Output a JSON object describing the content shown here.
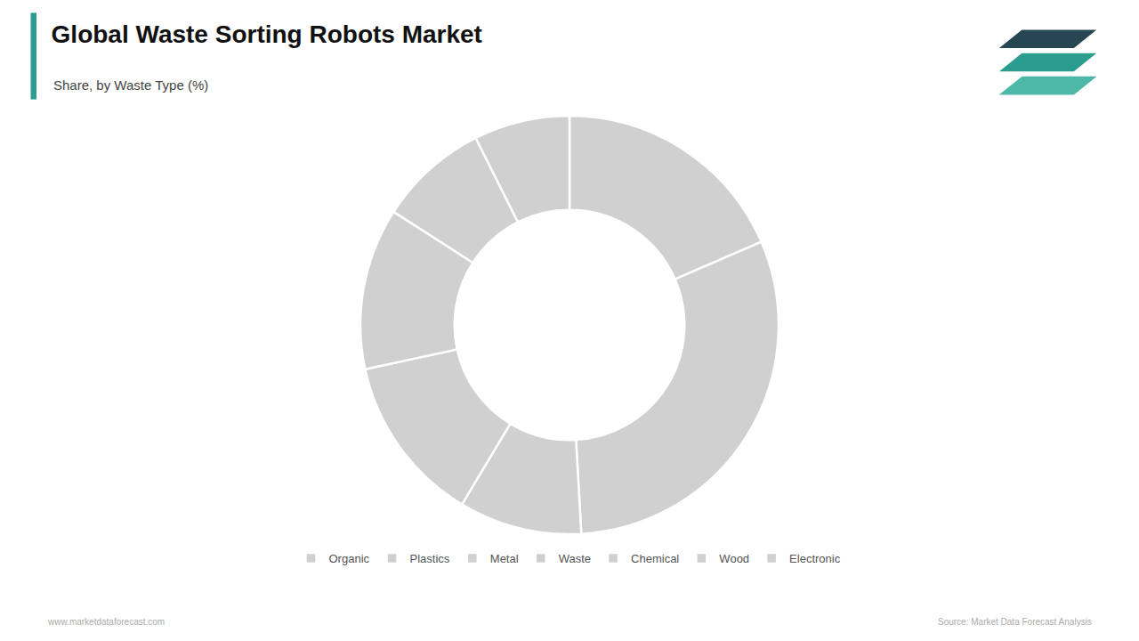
{
  "chart_data": {
    "type": "donut",
    "title": "Global Waste Sorting Robots Market",
    "subtitle": "Share, by Waste Type (%)",
    "categories": [
      "Organic",
      "Plastics",
      "Metal",
      "Waste",
      "Chemical",
      "Wood",
      "Electronic"
    ],
    "values": [
      18.5,
      30.6,
      9.5,
      13.0,
      12.5,
      8.5,
      7.4
    ],
    "colors": [
      "#d0d0d0",
      "#d0d0d0",
      "#d0d0d0",
      "#d0d0d0",
      "#d0d0d0",
      "#d0d0d0",
      "#d0d0d0"
    ],
    "legend": "bottom",
    "annotations": [
      "www.marketdataforecast.com",
      "Source: Market Data Forecast Analysis"
    ]
  }
}
